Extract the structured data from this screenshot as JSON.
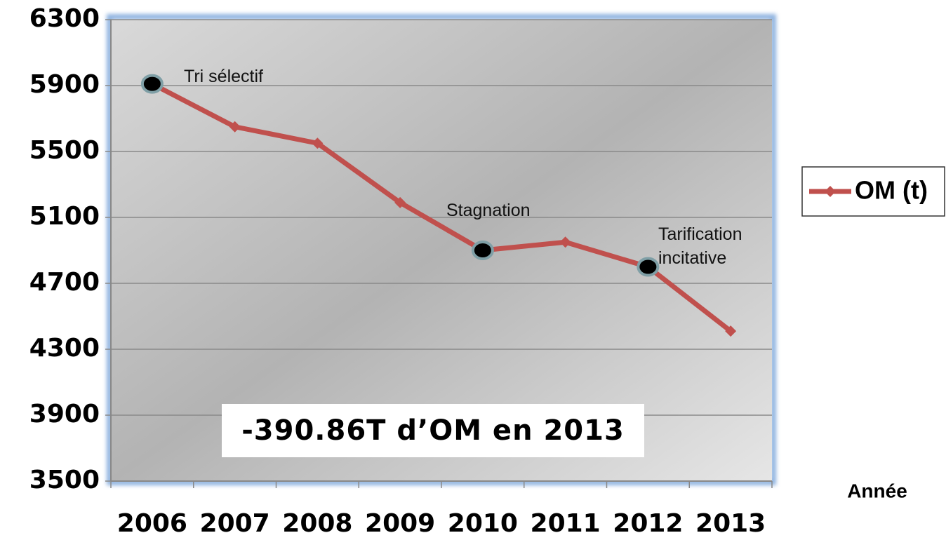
{
  "chart_data": {
    "type": "line",
    "categories": [
      "2006",
      "2007",
      "2008",
      "2009",
      "2010",
      "2011",
      "2012",
      "2013"
    ],
    "series": [
      {
        "name": "OM (t)",
        "color": "#c0504d",
        "values": [
          5910,
          5650,
          5550,
          5190,
          4900,
          4950,
          4800,
          4410
        ]
      }
    ],
    "ylim": [
      3500,
      6300
    ],
    "yticks": [
      3500,
      3900,
      4300,
      4700,
      5100,
      5500,
      5900,
      6300
    ],
    "grid": true,
    "legend": "right",
    "x_label": "Année",
    "annotations": [
      "Tri sélectif",
      "Stagnation",
      "Tarification incitative"
    ],
    "callout": "-390.86T d’OM en 2013"
  }
}
